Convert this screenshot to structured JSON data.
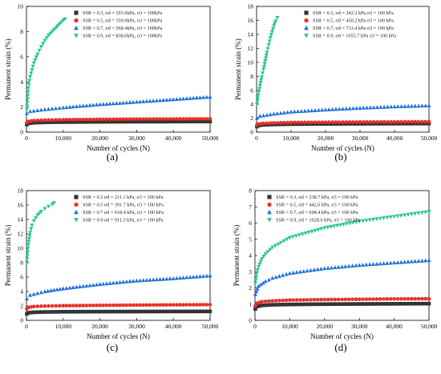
{
  "chart_data": [
    {
      "type": "scatter",
      "panel": "(a)",
      "xlabel": "Number of cycles (N)",
      "ylabel": "Permanent strain (%)",
      "xlim": [
        0,
        50000
      ],
      "ylim": [
        0,
        10
      ],
      "x_ticks": [
        "0",
        "10,000",
        "20,000",
        "30,000",
        "40,000",
        "50,000"
      ],
      "y_ticks": [
        "0",
        "2",
        "4",
        "6",
        "8",
        "10"
      ],
      "legend_position": "top-right",
      "series": [
        {
          "label": "SSR = 0.3, σd = 193.9kPa, σ3 = 100kPa",
          "color": "#333333",
          "marker": "square",
          "x": [
            100,
            500,
            2000,
            5000,
            10000,
            20000,
            30000,
            40000,
            50000
          ],
          "y": [
            0.6,
            0.7,
            0.75,
            0.78,
            0.8,
            0.82,
            0.83,
            0.84,
            0.85
          ]
        },
        {
          "label": "SSR = 0.5, σd = 359.9kPa, σ3 = 100kPa",
          "color": "#e8312a",
          "marker": "circle",
          "x": [
            100,
            500,
            2000,
            5000,
            10000,
            20000,
            30000,
            40000,
            50000
          ],
          "y": [
            0.75,
            0.85,
            0.92,
            0.96,
            0.99,
            1.02,
            1.04,
            1.05,
            1.06
          ]
        },
        {
          "label": "SSR = 0.7, σd = 568.4kPa, σ3 = 100kPa",
          "color": "#1f6fe0",
          "marker": "triangle-up",
          "x": [
            100,
            1000,
            5000,
            10000,
            20000,
            30000,
            40000,
            50000
          ],
          "y": [
            1.5,
            1.65,
            1.8,
            1.95,
            2.2,
            2.4,
            2.6,
            2.8
          ]
        },
        {
          "label": "SSR = 0.9, σd = 838.0kPa, σ3 = 100kPa",
          "color": "#27c98a",
          "marker": "triangle-down",
          "x": [
            100,
            500,
            1000,
            2000,
            3000,
            4000,
            5000,
            6000,
            7000,
            8000,
            9000,
            10000,
            10500
          ],
          "y": [
            1.8,
            3.5,
            4.4,
            5.5,
            6.2,
            6.8,
            7.3,
            7.7,
            8.0,
            8.3,
            8.6,
            8.9,
            9.0
          ]
        }
      ]
    },
    {
      "type": "scatter",
      "panel": "(b)",
      "xlabel": "Number of cycles (N)",
      "ylabel": "Permanent strain (%)",
      "xlim": [
        0,
        50000
      ],
      "ylim": [
        0,
        18
      ],
      "x_ticks": [
        "0",
        "10,000",
        "20,000",
        "30,000",
        "40,000",
        "50,000"
      ],
      "y_ticks": [
        "0",
        "2",
        "4",
        "6",
        "8",
        "10",
        "12",
        "14",
        "16",
        "18"
      ],
      "legend_position": "top-right",
      "series": [
        {
          "label": "SSR = 0.3, σd = 242.2 kPa σ3 = 100 kPa",
          "color": "#333333",
          "marker": "square",
          "x": [
            100,
            500,
            2000,
            5000,
            10000,
            20000,
            30000,
            40000,
            50000
          ],
          "y": [
            0.8,
            0.95,
            1.05,
            1.1,
            1.15,
            1.18,
            1.2,
            1.22,
            1.23
          ]
        },
        {
          "label": "SSR = 0.5, σd = 450.2 kPa σ3 = 100 kPa",
          "color": "#e8312a",
          "marker": "circle",
          "x": [
            100,
            500,
            2000,
            5000,
            10000,
            20000,
            30000,
            40000,
            50000
          ],
          "y": [
            1.0,
            1.15,
            1.25,
            1.32,
            1.38,
            1.42,
            1.45,
            1.47,
            1.5
          ]
        },
        {
          "label": "SSR = 0.7, σd = 713.4 kPa σ3 = 100 kPa",
          "color": "#1f6fe0",
          "marker": "triangle-up",
          "x": [
            100,
            1000,
            5000,
            10000,
            20000,
            30000,
            40000,
            50000
          ],
          "y": [
            2.0,
            2.3,
            2.6,
            2.9,
            3.2,
            3.45,
            3.65,
            3.8
          ]
        },
        {
          "label": "SSR = 0.9, σd = 1055.7 kPa σ3 = 100 kPa",
          "color": "#27c98a",
          "marker": "triangle-down",
          "x": [
            100,
            500,
            1000,
            1500,
            2000,
            2500,
            3000,
            3500,
            4000,
            4500,
            5000,
            5500,
            6000
          ],
          "y": [
            4.0,
            5.3,
            6.7,
            7.9,
            9.0,
            10.2,
            11.4,
            12.5,
            13.5,
            14.4,
            15.2,
            15.9,
            16.4
          ]
        }
      ]
    },
    {
      "type": "scatter",
      "panel": "(c)",
      "xlabel": "Number of cycles (N)",
      "ylabel": "Permanent strain (%)",
      "xlim": [
        0,
        50000
      ],
      "ylim": [
        0,
        18
      ],
      "x_ticks": [
        "0",
        "10,000",
        "20,000",
        "30,000",
        "40,000",
        "50,000"
      ],
      "y_ticks": [
        "0",
        "2",
        "4",
        "6",
        "8",
        "10",
        "12",
        "14",
        "16",
        "18"
      ],
      "legend_position": "top-right",
      "series": [
        {
          "label": "SSR = 0.3 σd = 211.1 kPa, σ3 = 100 kPa",
          "color": "#333333",
          "marker": "square",
          "x": [
            100,
            500,
            2000,
            5000,
            10000,
            20000,
            30000,
            40000,
            50000
          ],
          "y": [
            0.9,
            1.05,
            1.12,
            1.16,
            1.19,
            1.21,
            1.22,
            1.23,
            1.24
          ]
        },
        {
          "label": "SSR = 0.5 σd = 391.7 kPa, σ3 = 100 kPa",
          "color": "#e8312a",
          "marker": "circle",
          "x": [
            100,
            500,
            2000,
            5000,
            10000,
            20000,
            30000,
            40000,
            50000
          ],
          "y": [
            1.6,
            1.8,
            1.92,
            1.98,
            2.03,
            2.08,
            2.12,
            2.15,
            2.18
          ]
        },
        {
          "label": "SSR = 0.7 σd = 618.4 kPa, σ3 = 100 kPa",
          "color": "#1f6fe0",
          "marker": "triangle-up",
          "x": [
            100,
            1000,
            5000,
            10000,
            20000,
            30000,
            40000,
            50000
          ],
          "y": [
            3.0,
            3.5,
            4.0,
            4.4,
            5.0,
            5.5,
            5.8,
            6.2
          ]
        },
        {
          "label": "SSR = 0.9 σd = 911.3 kPa, σ3 = 100 kPa",
          "color": "#27c98a",
          "marker": "triangle-down",
          "x": [
            100,
            500,
            1000,
            1500,
            2000,
            3000,
            4000,
            5000,
            6000,
            7000,
            7500
          ],
          "y": [
            8.0,
            10.5,
            12.2,
            13.2,
            13.8,
            14.6,
            15.1,
            15.5,
            15.8,
            16.1,
            16.3
          ]
        }
      ]
    },
    {
      "type": "scatter",
      "panel": "(d)",
      "xlabel": "Number of cycles (N)",
      "ylabel": "Permanent strain (%)",
      "xlim": [
        0,
        50000
      ],
      "ylim": [
        0,
        8
      ],
      "x_ticks": [
        "0",
        "10,000",
        "20,000",
        "30,000",
        "40,000",
        "50,000"
      ],
      "y_ticks": [
        "0",
        "1",
        "2",
        "3",
        "4",
        "5",
        "6",
        "7",
        "8"
      ],
      "legend_position": "top-left",
      "series": [
        {
          "label": "SSR = 0.3, σd = 238.7 kPa, σ3 = 100 kPa",
          "color": "#333333",
          "marker": "square",
          "x": [
            100,
            500,
            2000,
            5000,
            10000,
            20000,
            30000,
            40000,
            50000
          ],
          "y": [
            0.7,
            0.85,
            0.92,
            0.96,
            0.98,
            1.0,
            1.01,
            1.02,
            1.03
          ]
        },
        {
          "label": "SSR = 0.5, σd = 442.6 kPa, σ3 = 100 kPa",
          "color": "#e8312a",
          "marker": "circle",
          "x": [
            100,
            500,
            2000,
            5000,
            10000,
            20000,
            30000,
            40000,
            50000
          ],
          "y": [
            0.9,
            1.05,
            1.15,
            1.2,
            1.25,
            1.28,
            1.3,
            1.32,
            1.33
          ]
        },
        {
          "label": "SSR = 0.7, σd = 698.4 kPa, σ3 = 100 kPa",
          "color": "#1f6fe0",
          "marker": "triangle-up",
          "x": [
            100,
            1000,
            3000,
            5000,
            10000,
            20000,
            30000,
            40000,
            50000
          ],
          "y": [
            1.6,
            2.1,
            2.4,
            2.6,
            2.9,
            3.2,
            3.4,
            3.55,
            3.7
          ]
        },
        {
          "label": "SSR = 0.9, σd = 1028.6 kPa, σ3 = 100 kPa",
          "color": "#27c98a",
          "marker": "triangle-down",
          "x": [
            100,
            500,
            1000,
            2000,
            3000,
            5000,
            10000,
            20000,
            30000,
            40000,
            50000
          ],
          "y": [
            2.3,
            2.9,
            3.3,
            3.8,
            4.1,
            4.5,
            5.1,
            5.7,
            6.1,
            6.4,
            6.7
          ]
        }
      ]
    }
  ]
}
